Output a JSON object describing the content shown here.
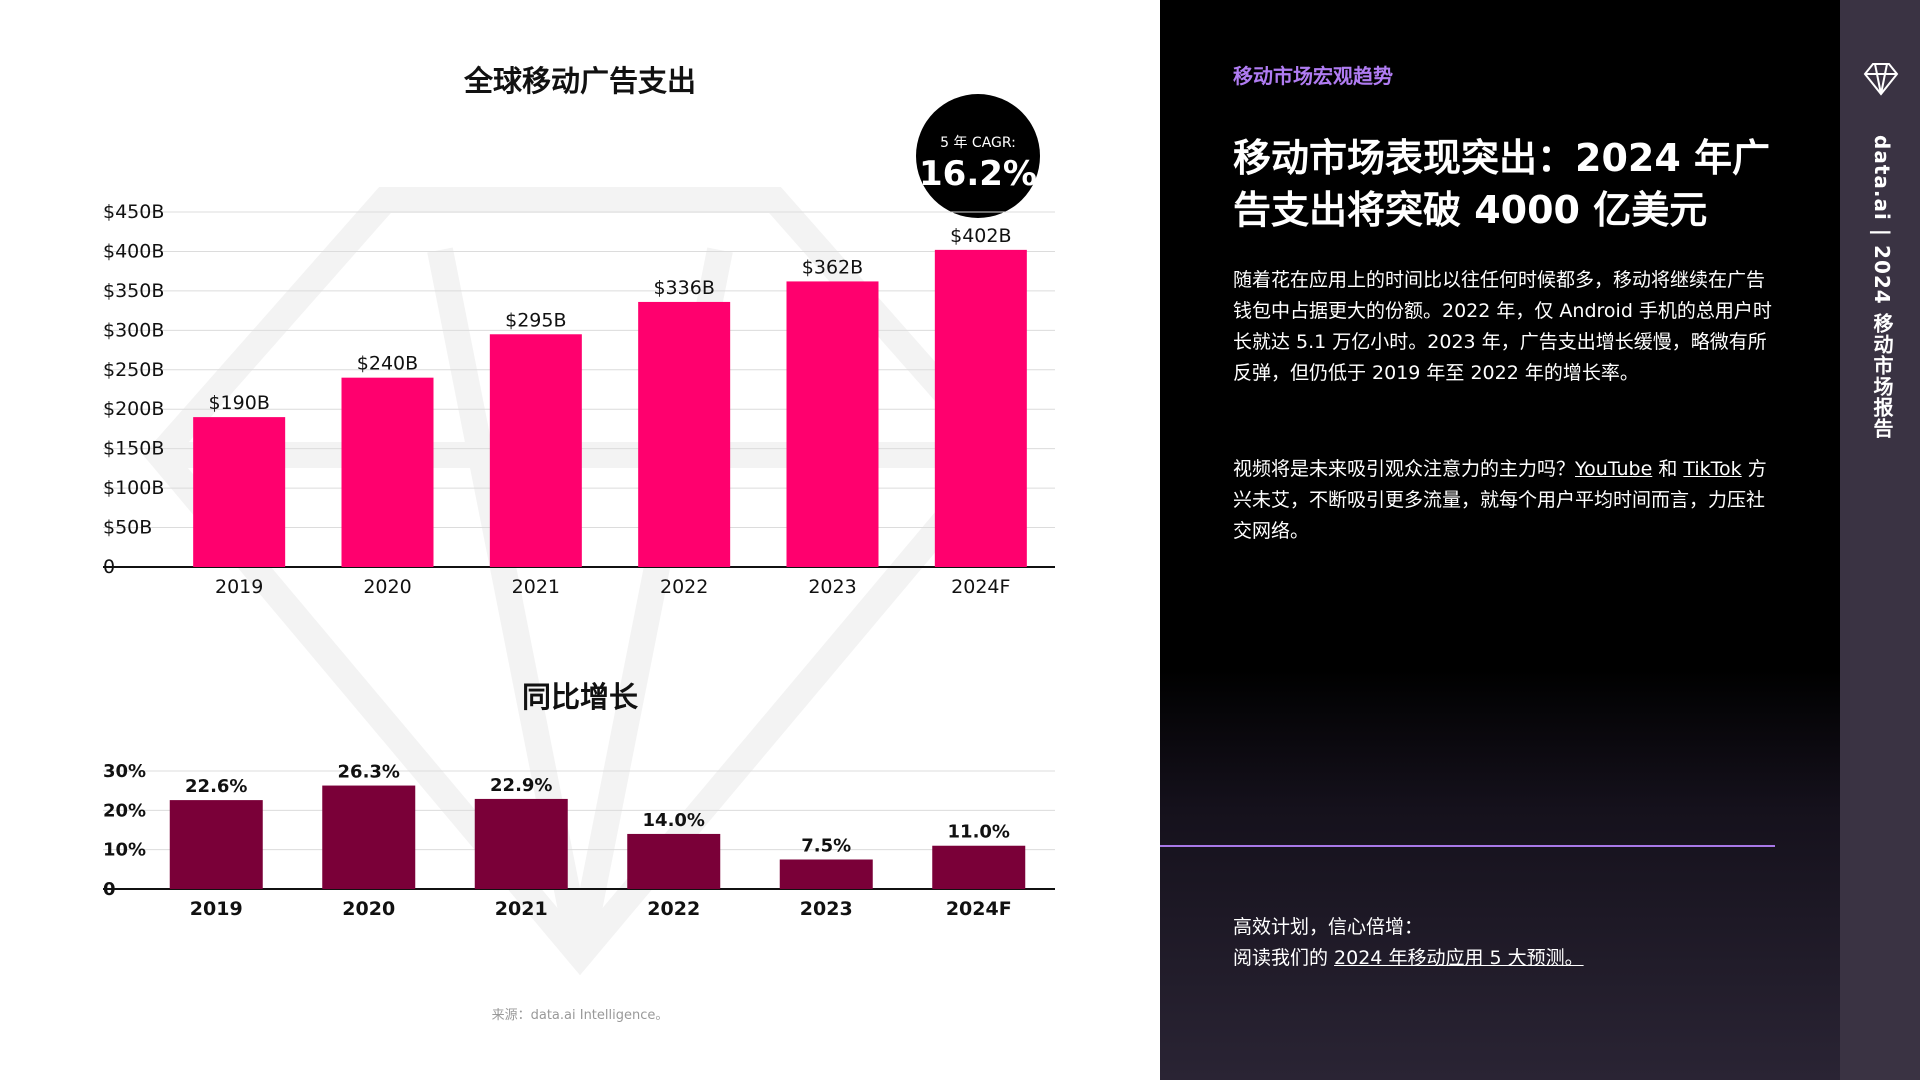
{
  "left": {
    "title_main": "全球移动广告支出",
    "cagr_label": "5 年 CAGR:",
    "cagr_value": "16.2%",
    "title_yoy": "同比增长",
    "source": "来源：data.ai Intelligence。"
  },
  "right": {
    "kicker": "移动市场宏观趋势",
    "headline": "移动市场表现突出：2024 年广告支出将突破 4000 亿美元",
    "para1": "随着花在应用上的时间比以往任何时候都多，移动将继续在广告钱包中占据更大的份额。2022 年，仅 Android 手机的总用户时长就达 5.1 万亿小时。2023 年，广告支出增长缓慢，略微有所反弹，但仍低于 2019 年至 2022 年的增长率。",
    "para2_pre": "视频将是未来吸引观众注意力的主力吗？",
    "para2_link1": "YouTube",
    "para2_mid": " 和 ",
    "para2_link2": "TikTok",
    "para2_post": " 方兴未艾，不断吸引更多流量，就每个用户平均时间而言，力压社交网络。",
    "cta_line1": "高效计划，信心倍增：",
    "cta_pre": "阅读我们的 ",
    "cta_link": "2024 年移动应用 5 大预测。"
  },
  "sidebar": {
    "vertical_text": "data.ai | 2024 移动市场报告",
    "logo_icon": "diamond-logo-icon"
  },
  "colors": {
    "bar_main": "#ff006e",
    "bar_yoy": "#7a0038",
    "accent": "#b07cf2"
  },
  "chart_data": [
    {
      "type": "bar",
      "title": "全球移动广告支出",
      "categories": [
        "2019",
        "2020",
        "2021",
        "2022",
        "2023",
        "2024F"
      ],
      "values": [
        190,
        240,
        295,
        336,
        362,
        402
      ],
      "value_labels": [
        "$190B",
        "$240B",
        "$295B",
        "$336B",
        "$362B",
        "$402B"
      ],
      "ytick_labels": [
        "0",
        "$50B",
        "$100B",
        "$150B",
        "$200B",
        "$250B",
        "$300B",
        "$350B",
        "$400B",
        "$450B"
      ],
      "ylim": [
        0,
        450
      ],
      "grid": true
    },
    {
      "type": "bar",
      "title": "同比增长",
      "categories": [
        "2019",
        "2020",
        "2021",
        "2022",
        "2023",
        "2024F"
      ],
      "values": [
        22.6,
        26.3,
        22.9,
        14.0,
        7.5,
        11.0
      ],
      "value_labels": [
        "22.6%",
        "26.3%",
        "22.9%",
        "14.0%",
        "7.5%",
        "11.0%"
      ],
      "ytick_labels": [
        "0",
        "10%",
        "20%",
        "30%"
      ],
      "ylim": [
        0,
        30
      ],
      "grid": true
    }
  ]
}
